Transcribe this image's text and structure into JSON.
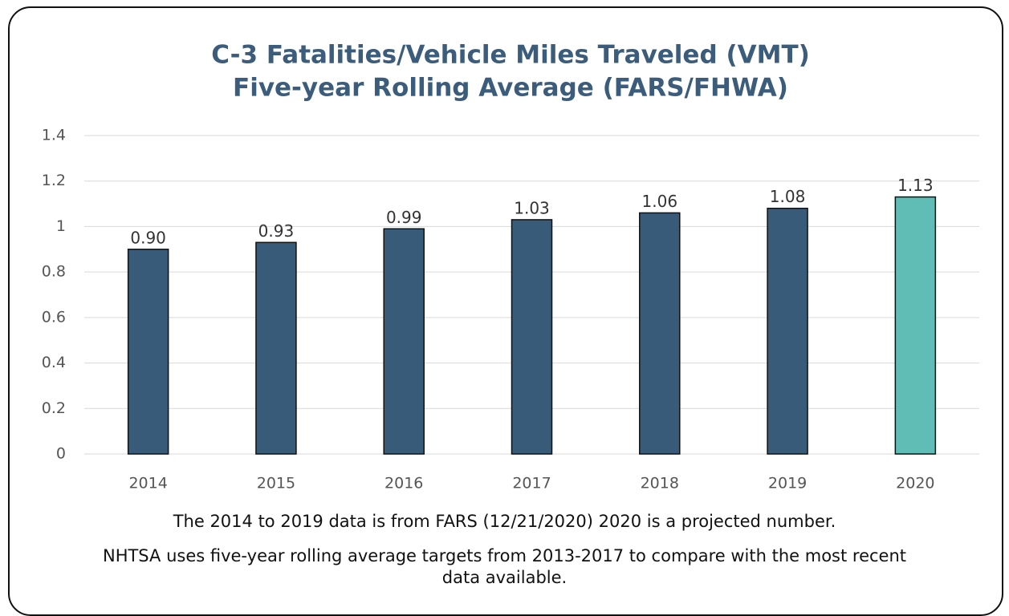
{
  "chart_data": {
    "type": "bar",
    "title": "C-3 Fatalities/Vehicle Miles Traveled (VMT)",
    "subtitle": "Five-year Rolling Average (FARS/FHWA)",
    "categories": [
      "2014",
      "2015",
      "2016",
      "2017",
      "2018",
      "2019",
      "2020"
    ],
    "values": [
      0.9,
      0.93,
      0.99,
      1.03,
      1.06,
      1.08,
      1.13
    ],
    "value_labels": [
      "0.90",
      "0.93",
      "0.99",
      "1.03",
      "1.06",
      "1.08",
      "1.13"
    ],
    "colors": [
      "#375b79",
      "#375b79",
      "#375b79",
      "#375b79",
      "#375b79",
      "#375b79",
      "#5fbdb5"
    ],
    "ylim": [
      0,
      1.4
    ],
    "yticks": [
      0,
      0.2,
      0.4,
      0.6,
      0.8,
      1,
      1.2,
      1.4
    ],
    "grid": true,
    "annotations": [
      "The 2014 to 2019 data is from FARS (12/21/2020) 2020 is a projected number.",
      "NHTSA uses five-year rolling average targets from 2013-2017 to compare with the most recent data available."
    ]
  }
}
